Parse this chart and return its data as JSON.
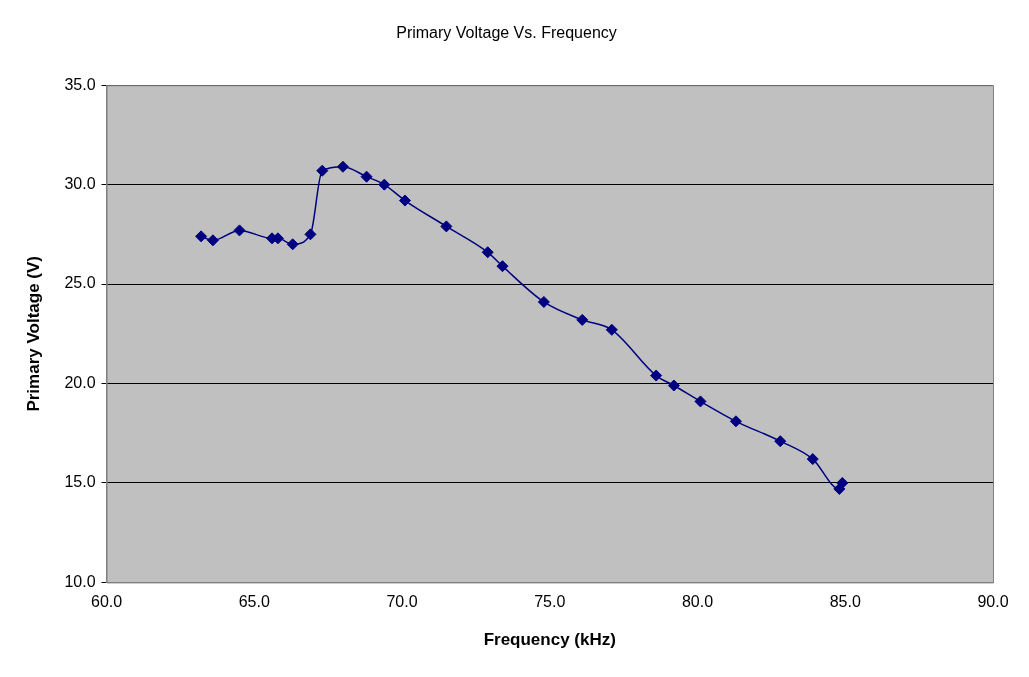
{
  "chart_data": {
    "type": "line",
    "title": "Primary Voltage Vs. Frequency",
    "xlabel": "Frequency (kHz)",
    "ylabel": "Primary Voltage (V)",
    "x": [
      63.2,
      63.6,
      64.5,
      65.6,
      65.8,
      66.3,
      66.9,
      67.3,
      68.0,
      68.8,
      69.4,
      70.1,
      71.5,
      72.9,
      73.4,
      74.8,
      76.1,
      77.1,
      78.6,
      79.2,
      80.1,
      81.3,
      82.8,
      83.9,
      84.8,
      84.9
    ],
    "series": [
      {
        "color": "#000080",
        "values": [
          27.4,
          27.2,
          27.7,
          27.3,
          27.3,
          27.0,
          27.5,
          30.7,
          30.9,
          30.4,
          30.0,
          29.2,
          27.9,
          26.6,
          25.9,
          24.1,
          23.2,
          22.7,
          20.4,
          19.9,
          19.1,
          18.1,
          17.1,
          16.2,
          14.7,
          15.0
        ]
      }
    ],
    "xlim": [
      60,
      90
    ],
    "xticks": [
      {
        "value": 60,
        "label": "60.0"
      },
      {
        "value": 65,
        "label": "65.0"
      },
      {
        "value": 70,
        "label": "70.0"
      },
      {
        "value": 75,
        "label": "75.0"
      },
      {
        "value": 80,
        "label": "80.0"
      },
      {
        "value": 85,
        "label": "85.0"
      },
      {
        "value": 90,
        "label": "90.0"
      }
    ],
    "ylim": [
      10,
      35
    ],
    "yticks": [
      {
        "value": 10,
        "label": "10.0"
      },
      {
        "value": 15,
        "label": "15.0"
      },
      {
        "value": 20,
        "label": "20.0"
      },
      {
        "value": 25,
        "label": "25.0"
      },
      {
        "value": 30,
        "label": "30.0"
      },
      {
        "value": 35,
        "label": "35.0"
      }
    ],
    "grid": "y",
    "legend": false,
    "marker": "diamond",
    "line_style": "solid"
  }
}
